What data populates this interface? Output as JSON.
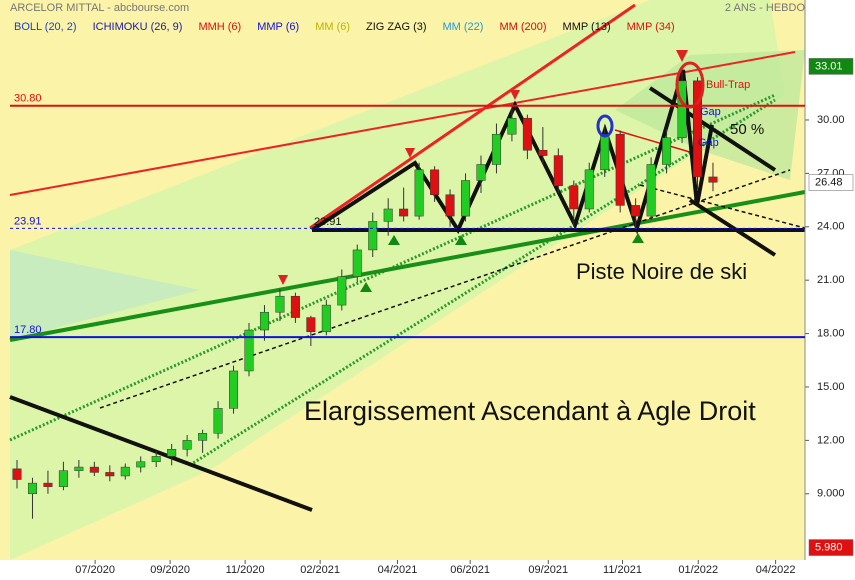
{
  "chart_data": {
    "type": "candlestick",
    "title": "ARCELOR MITTAL - abcbourse.com",
    "subtitle": "2 ANS - HEBDO",
    "indicators": [
      {
        "name": "BOLL (20, 2)",
        "color": "#1a44cc"
      },
      {
        "name": "ICHIMOKU (26, 9)",
        "color": "#1a1aaa"
      },
      {
        "name": "MMH (6)",
        "color": "#dd1111"
      },
      {
        "name": "MMP (6)",
        "color": "#1111dd"
      },
      {
        "name": "MM (6)",
        "color": "#b8b800"
      },
      {
        "name": "ZIG ZAG (3)",
        "color": "#111111"
      },
      {
        "name": "MM (22)",
        "color": "#2299dd"
      },
      {
        "name": "MM (200)",
        "color": "#cc1111"
      },
      {
        "name": "MMP (13)",
        "color": "#111111"
      },
      {
        "name": "MMP (34)",
        "color": "#dd1111"
      }
    ],
    "x": [
      0,
      2,
      4,
      6,
      8,
      10,
      12,
      14,
      16,
      18,
      20,
      22,
      24,
      26,
      28,
      30,
      32,
      34,
      36,
      38,
      40,
      42,
      44,
      46,
      48,
      50,
      52,
      54,
      56,
      58,
      60,
      62,
      64,
      66,
      68,
      70,
      72,
      74,
      76,
      78,
      80,
      82,
      84,
      86,
      88,
      90
    ],
    "open": [
      10.4,
      9.0,
      9.6,
      9.4,
      10.3,
      10.5,
      10.2,
      10.0,
      10.5,
      10.8,
      11.1,
      11.5,
      12.0,
      12.4,
      13.8,
      15.9,
      18.2,
      19.2,
      20.1,
      18.9,
      18.1,
      19.6,
      21.2,
      22.7,
      24.3,
      25.0,
      24.6,
      27.2,
      25.8,
      24.6,
      26.6,
      27.5,
      29.2,
      30.1,
      28.3,
      28.0,
      26.3,
      25.0,
      27.2,
      29.2,
      25.2,
      24.6,
      27.5,
      29.0,
      32.2,
      26.8
    ],
    "high": [
      10.9,
      9.9,
      10.3,
      10.8,
      10.9,
      10.8,
      10.6,
      10.7,
      11.1,
      11.4,
      11.8,
      12.3,
      12.6,
      14.2,
      16.2,
      18.6,
      19.6,
      20.5,
      20.3,
      19.0,
      19.9,
      21.6,
      23.0,
      24.8,
      25.6,
      26.2,
      27.6,
      27.4,
      26.1,
      27.0,
      28.0,
      29.8,
      30.9,
      30.3,
      29.6,
      28.4,
      26.6,
      27.6,
      29.7,
      29.4,
      25.6,
      27.9,
      29.5,
      33.0,
      32.4,
      27.6
    ],
    "low": [
      9.3,
      7.6,
      9.0,
      9.2,
      9.9,
      10.0,
      9.7,
      9.8,
      10.2,
      10.5,
      10.6,
      11.1,
      11.3,
      12.1,
      13.5,
      15.6,
      17.6,
      18.7,
      18.6,
      17.3,
      17.9,
      19.3,
      20.9,
      22.3,
      23.5,
      24.3,
      24.4,
      25.4,
      24.0,
      24.3,
      25.9,
      27.0,
      28.8,
      27.8,
      27.5,
      25.9,
      24.0,
      24.8,
      26.8,
      24.8,
      23.9,
      24.4,
      27.0,
      28.7,
      26.1,
      26.0
    ],
    "close": [
      9.8,
      9.6,
      9.4,
      10.3,
      10.5,
      10.2,
      10.0,
      10.5,
      10.8,
      11.1,
      11.5,
      12.0,
      12.4,
      13.8,
      15.9,
      18.2,
      19.2,
      20.1,
      18.9,
      18.1,
      19.6,
      21.2,
      22.7,
      24.3,
      25.0,
      24.6,
      27.2,
      25.8,
      24.6,
      26.6,
      27.5,
      29.2,
      30.1,
      28.3,
      28.0,
      26.3,
      25.0,
      27.2,
      29.2,
      25.2,
      24.6,
      27.5,
      29.0,
      32.2,
      26.8,
      26.5
    ],
    "up_color": "#22cc22",
    "down_color": "#dd1111",
    "xlim": [
      -2.2,
      101.9
    ],
    "xticks": [
      {
        "value": 10.1,
        "label": "07/2020"
      },
      {
        "value": 19.8,
        "label": "09/2020"
      },
      {
        "value": 29.5,
        "label": "11/2020"
      },
      {
        "value": 39.2,
        "label": "02/2021"
      },
      {
        "value": 49.2,
        "label": "04/2021"
      },
      {
        "value": 58.6,
        "label": "06/2021"
      },
      {
        "value": 68.7,
        "label": "09/2021"
      },
      {
        "value": 78.3,
        "label": "11/2021"
      },
      {
        "value": 88.1,
        "label": "01/2022"
      },
      {
        "value": 98.1,
        "label": "04/2022"
      }
    ],
    "ylim": [
      5.28,
      36.74
    ],
    "yticks": [
      {
        "value": 9,
        "label": "9.000"
      },
      {
        "value": 12,
        "label": "12.00"
      },
      {
        "value": 15,
        "label": "15.00"
      },
      {
        "value": 18,
        "label": "18.00"
      },
      {
        "value": 21,
        "label": "21.00"
      },
      {
        "value": 24,
        "label": "24.00"
      },
      {
        "value": 27,
        "label": "27.00"
      },
      {
        "value": 30,
        "label": "30.00"
      }
    ],
    "levels": [
      {
        "value": 30.8,
        "label": "30.80",
        "color": "#dd1111",
        "dash": false
      },
      {
        "value": 23.91,
        "label": "23.91",
        "color": "#1111dd",
        "dash": true
      },
      {
        "value": 17.8,
        "label": "17.80",
        "color": "#1111dd",
        "dash": false
      }
    ],
    "price_labels": [
      {
        "value": 33.01,
        "label": "33.01",
        "color": "#118811"
      },
      {
        "value": 26.48,
        "label": "26.48",
        "color": "#ffffff"
      },
      {
        "value": 5.98,
        "label": "5.980",
        "color": "#dd1111"
      }
    ],
    "annotations": [
      "23.91",
      "Bull-Trap",
      "50 %",
      "Gap",
      "Gap",
      "Piste Noire de ski",
      "Elargissement Ascendant à Agle Droit"
    ]
  }
}
